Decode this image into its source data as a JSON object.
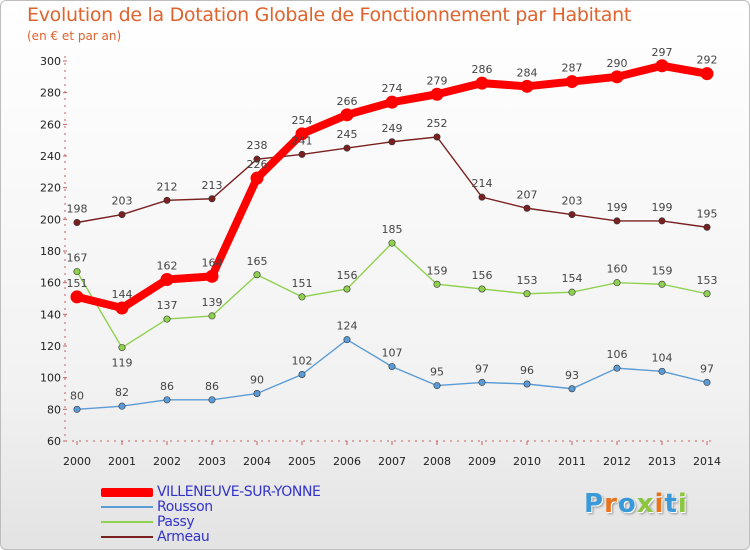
{
  "title": "Evolution de la Dotation Globale de Fonctionnement par Habitant",
  "subtitle": "(en € et par an)",
  "logo": {
    "text": "Proxiti",
    "letters": [
      "P",
      "r",
      "o",
      "x",
      "i",
      "t",
      "i"
    ],
    "colors": [
      "#3a9ad9",
      "#e8731b",
      "#3a9ad9",
      "#8cc63f",
      "#e8731b",
      "#3a9ad9",
      "#8cc63f"
    ]
  },
  "chart_data": {
    "type": "line",
    "title": "Evolution de la Dotation Globale de Fonctionnement par Habitant",
    "ylabel": "(en € et par an)",
    "x": [
      "2000",
      "2001",
      "2002",
      "2003",
      "2004",
      "2005",
      "2006",
      "2007",
      "2008",
      "2009",
      "2010",
      "2011",
      "2012",
      "2013",
      "2014"
    ],
    "ylim": [
      60,
      300
    ],
    "yticks": [
      60,
      80,
      100,
      120,
      140,
      160,
      180,
      200,
      220,
      240,
      260,
      280,
      300
    ],
    "grid": false,
    "legend": "bottom-left",
    "series": [
      {
        "name": "Armeau",
        "color": "#7a2020",
        "values": [
          198,
          203,
          212,
          213,
          238,
          241,
          245,
          249,
          252,
          214,
          207,
          203,
          199,
          199,
          195
        ]
      },
      {
        "name": "Passy",
        "color": "#8fd14f",
        "values": [
          167,
          119,
          137,
          139,
          165,
          151,
          156,
          185,
          159,
          156,
          153,
          154,
          160,
          159,
          153
        ]
      },
      {
        "name": "Rousson",
        "color": "#5b9bd5",
        "values": [
          80,
          82,
          86,
          86,
          90,
          102,
          124,
          107,
          95,
          97,
          96,
          93,
          106,
          104,
          97
        ]
      },
      {
        "name": "VILLENEUVE-SUR-YONNE",
        "color": "#ff0000",
        "values": [
          151,
          144,
          162,
          164,
          226,
          254,
          266,
          274,
          279,
          286,
          284,
          287,
          290,
          297,
          292
        ]
      }
    ]
  },
  "legend_items": [
    {
      "name": "VILLENEUVE-SUR-YONNE",
      "color": "#ff0000",
      "text_color": "#3333cc"
    },
    {
      "name": "Rousson",
      "color": "#5b9bd5",
      "text_color": "#3333cc"
    },
    {
      "name": "Passy",
      "color": "#8fd14f",
      "text_color": "#3333cc"
    },
    {
      "name": "Armeau",
      "color": "#7a2020",
      "text_color": "#3333cc"
    }
  ]
}
